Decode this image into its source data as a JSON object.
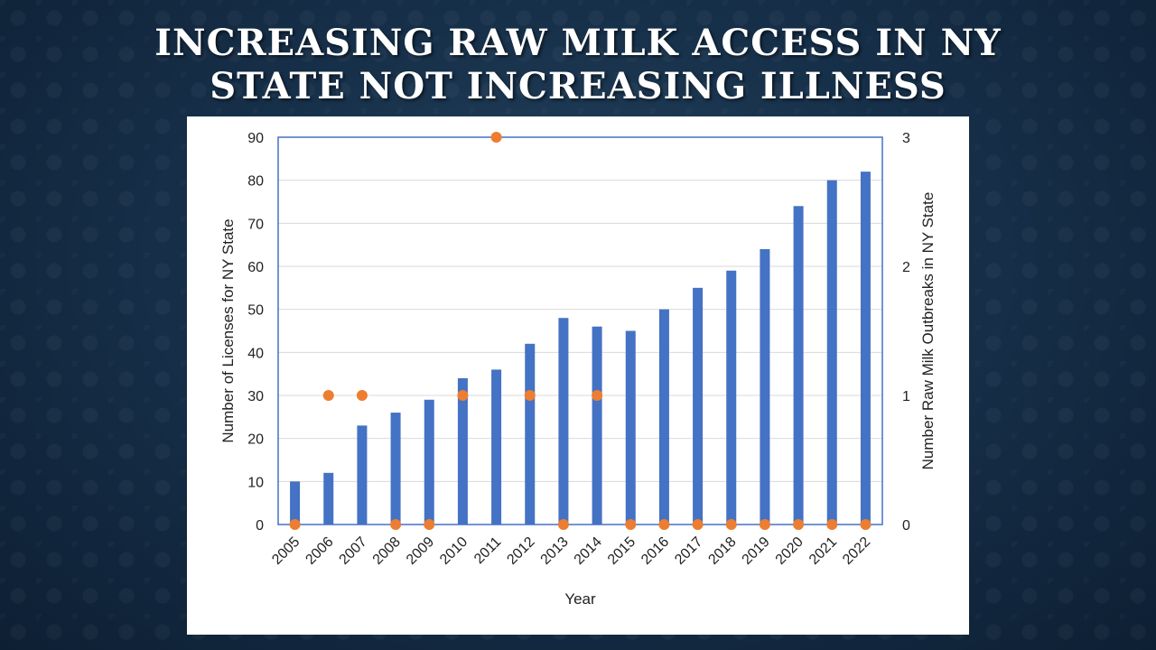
{
  "slide": {
    "title_line1": "INCREASING RAW MILK ACCESS IN NY",
    "title_line2": "STATE NOT INCREASING ILLNESS"
  },
  "colors": {
    "bar": "#4472c4",
    "dot": "#ed7d31",
    "frame": "#4472c4",
    "grid": "#d9d9d9"
  },
  "chart_data": {
    "type": "bar",
    "title": "",
    "xlabel": "Year",
    "ylabel": "Number of Licenses for NY State",
    "y2label": "Number Raw Milk Outbreaks in NY State",
    "categories": [
      "2005",
      "2006",
      "2007",
      "2008",
      "2009",
      "2010",
      "2011",
      "2012",
      "2013",
      "2014",
      "2015",
      "2016",
      "2017",
      "2018",
      "2019",
      "2020",
      "2021",
      "2022"
    ],
    "ylim": [
      0,
      90
    ],
    "yticks": [
      "0",
      "10",
      "20",
      "30",
      "40",
      "50",
      "60",
      "70",
      "80",
      "90"
    ],
    "y2lim": [
      0,
      3
    ],
    "y2ticks": [
      "0",
      "1",
      "2",
      "3"
    ],
    "grid": true,
    "series": [
      {
        "name": "Licenses",
        "kind": "bar",
        "axis": "left",
        "values": [
          10,
          12,
          23,
          26,
          29,
          34,
          36,
          42,
          48,
          46,
          45,
          50,
          55,
          59,
          64,
          74,
          80,
          82
        ]
      },
      {
        "name": "Outbreaks",
        "kind": "scatter",
        "axis": "right",
        "values": [
          0,
          1,
          1,
          0,
          0,
          1,
          3,
          1,
          0,
          1,
          0,
          0,
          0,
          0,
          0,
          0,
          0,
          0
        ]
      }
    ]
  }
}
